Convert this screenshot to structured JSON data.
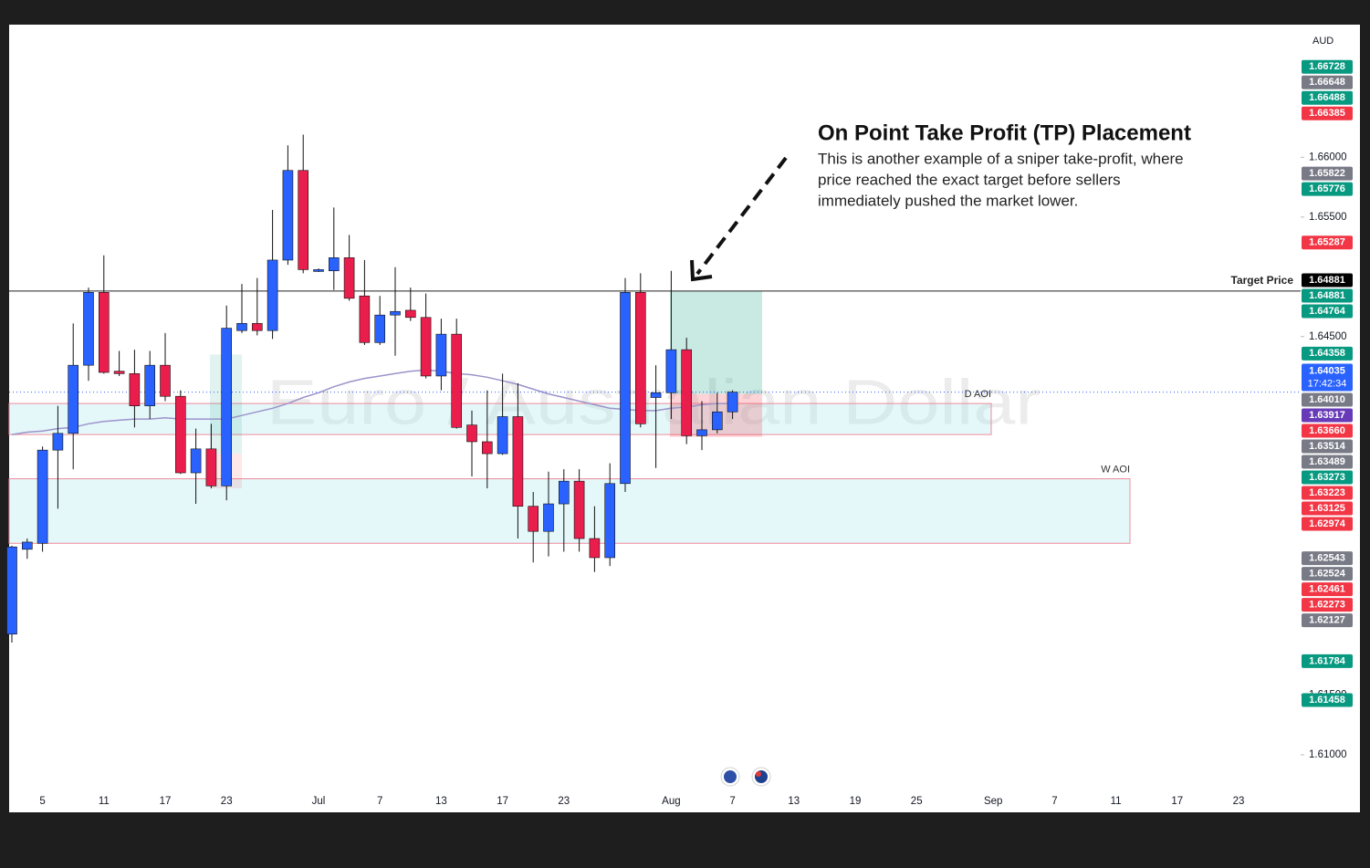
{
  "chart_data": {
    "type": "candlestick",
    "currency": "AUD",
    "watermark": "Euro / Australian Dollar",
    "annotation": {
      "title": "On Point Take Profit (TP) Placement",
      "lines": [
        "This is another example of a sniper take-profit, where",
        "price reached the exact target before sellers",
        "immediately pushed the market lower."
      ]
    },
    "categories": [
      null,
      null,
      "5",
      null,
      null,
      null,
      "11",
      null,
      null,
      null,
      "17",
      null,
      null,
      null,
      "23",
      null,
      null,
      null,
      null,
      null,
      "Jul",
      null,
      null,
      null,
      "7",
      null,
      null,
      null,
      "13",
      null,
      null,
      null,
      "17",
      null,
      null,
      null,
      "23",
      null,
      null,
      null,
      null,
      null,
      null,
      "Aug",
      null,
      null,
      null,
      "7",
      null,
      null,
      null,
      "13",
      null,
      null,
      null,
      "19",
      null,
      null,
      null,
      "25",
      null,
      null,
      null,
      null,
      "Sep",
      null,
      null,
      null,
      "7",
      null,
      null,
      null,
      "11",
      null,
      null,
      null,
      "17",
      null,
      null,
      null,
      "23",
      null
    ],
    "open": [
      1.6201,
      1.6272,
      1.6277,
      1.6355,
      1.6369,
      1.6426,
      1.6487,
      1.6421,
      1.6419,
      1.6392,
      1.6426,
      1.64,
      1.6336,
      1.6356,
      1.6325,
      1.6455,
      1.6461,
      1.6455,
      1.6514,
      1.6589,
      1.6505,
      1.6505,
      1.6516,
      1.6484,
      1.6445,
      1.6468,
      1.6472,
      1.6466,
      1.6417,
      1.6452,
      1.6376,
      1.6362,
      1.6352,
      1.6383,
      1.6308,
      1.6287,
      1.631,
      1.6329,
      1.6281,
      1.6265,
      1.6327,
      1.6487,
      1.6399,
      1.6403,
      1.6439,
      1.6367,
      1.6372,
      1.6387,
      null,
      null,
      null,
      null,
      null,
      null,
      null,
      null,
      null,
      null,
      null,
      null,
      null,
      null,
      null,
      null,
      null,
      null,
      null,
      null,
      null,
      null,
      null,
      null,
      null,
      null,
      null,
      null,
      null,
      null,
      null,
      null,
      null,
      null
    ],
    "high": [
      1.6275,
      1.6281,
      1.6358,
      1.6392,
      1.6461,
      1.6491,
      1.6518,
      1.6438,
      1.6439,
      1.6438,
      1.6453,
      1.6405,
      1.6373,
      1.6377,
      1.6476,
      1.6494,
      1.6499,
      1.6556,
      1.661,
      1.6619,
      1.6507,
      1.6558,
      1.6535,
      1.6514,
      1.6484,
      1.6508,
      1.6491,
      1.6486,
      1.6465,
      1.6465,
      1.6388,
      1.6405,
      1.6419,
      1.6411,
      1.632,
      1.6337,
      1.6339,
      1.6339,
      1.6308,
      1.6344,
      1.6499,
      1.6503,
      1.6426,
      1.6505,
      1.6449,
      1.6396,
      1.6403,
      1.6405,
      null,
      null,
      null,
      null,
      null,
      null,
      null,
      null,
      null,
      null,
      null,
      null,
      null,
      null,
      null,
      null,
      null,
      null,
      null,
      null,
      null,
      null,
      null,
      null,
      null,
      null,
      null,
      null,
      null,
      null,
      null,
      null,
      null,
      null
    ],
    "low": [
      1.6194,
      1.6264,
      1.627,
      1.6306,
      1.6339,
      1.6413,
      1.6419,
      1.6417,
      1.6374,
      1.6381,
      1.6396,
      1.6335,
      1.631,
      1.6323,
      1.6313,
      1.6453,
      1.6451,
      1.6448,
      1.651,
      1.6503,
      1.6504,
      1.6489,
      1.648,
      1.6443,
      1.6443,
      1.6434,
      1.6463,
      1.6415,
      1.6405,
      1.6373,
      1.6333,
      1.6323,
      1.6351,
      1.6281,
      1.6261,
      1.6266,
      1.627,
      1.627,
      1.6253,
      1.6258,
      1.632,
      1.6374,
      1.634,
      1.6381,
      1.636,
      1.6355,
      1.6369,
      1.6381,
      null,
      null,
      null,
      null,
      null,
      null,
      null,
      null,
      null,
      null,
      null,
      null,
      null,
      null,
      null,
      null,
      null,
      null,
      null,
      null,
      null,
      null,
      null,
      null,
      null,
      null,
      null,
      null,
      null,
      null,
      null,
      null,
      null,
      null
    ],
    "close": [
      1.6274,
      1.6278,
      1.6355,
      1.6369,
      1.6426,
      1.6487,
      1.642,
      1.6419,
      1.6392,
      1.6426,
      1.64,
      1.6336,
      1.6356,
      1.6325,
      1.6457,
      1.6461,
      1.6455,
      1.6514,
      1.6589,
      1.6506,
      1.6506,
      1.6516,
      1.6482,
      1.6445,
      1.6468,
      1.6471,
      1.6466,
      1.6417,
      1.6452,
      1.6374,
      1.6362,
      1.6352,
      1.6383,
      1.6308,
      1.6287,
      1.631,
      1.6329,
      1.6281,
      1.6265,
      1.6327,
      1.6487,
      1.6377,
      1.6403,
      1.6439,
      1.6367,
      1.6372,
      1.6387,
      1.64035,
      null,
      null,
      null,
      null,
      null,
      null,
      null,
      null,
      null,
      null,
      null,
      null,
      null,
      null,
      null,
      null,
      null,
      null,
      null,
      null,
      null,
      null,
      null,
      null,
      null,
      null,
      null,
      null,
      null,
      null,
      null,
      null,
      null,
      null
    ],
    "up_color": "#2962ff",
    "down_color": "#e91e4c",
    "moving_average": {
      "color": "#9c93c9",
      "values": [
        1.6368,
        1.637,
        1.6371,
        1.6373,
        1.6374,
        1.6377,
        1.6379,
        1.638,
        1.6381,
        1.6381,
        1.6382,
        1.6381,
        1.6381,
        1.6381,
        1.6381,
        1.6384,
        1.6387,
        1.639,
        1.6394,
        1.6399,
        1.6403,
        1.6408,
        1.6412,
        1.6415,
        1.6417,
        1.6419,
        1.6421,
        1.6422,
        1.6421,
        1.6419,
        1.6418,
        1.6416,
        1.6413,
        1.641,
        1.6406,
        1.6402,
        1.6399,
        1.6396,
        1.6393,
        1.639,
        1.6389,
        1.6388,
        1.6388,
        1.639,
        1.6391,
        1.6393,
        1.6394,
        1.6394,
        null,
        null,
        null,
        null,
        null,
        null,
        null,
        null,
        null,
        null,
        null,
        null,
        null,
        null,
        null,
        null,
        null,
        null,
        null,
        null,
        null,
        null,
        null,
        null,
        null,
        null,
        null,
        null,
        null,
        null,
        null,
        null,
        null,
        null
      ]
    },
    "zones": [
      {
        "label": "D AOI",
        "top": 1.6394,
        "bottom": 1.6368
      },
      {
        "label": "W AOI",
        "top": 1.6331,
        "bottom": 1.6277
      }
    ],
    "positions": [
      {
        "target": 1.6435,
        "entry": 1.6352,
        "stop": 1.6323
      },
      {
        "target": 1.64881,
        "entry": 1.6402,
        "stop": 1.6366
      }
    ],
    "target_line": {
      "label": "Target Price",
      "value": 1.64881
    },
    "ylim": [
      1.6071,
      1.6711
    ],
    "yticks": [
      {
        "value": 1.66,
        "label": "1.66000"
      },
      {
        "value": 1.655,
        "label": "1.65500"
      },
      {
        "value": 1.645,
        "label": "1.64500"
      },
      {
        "value": 1.615,
        "label": "1.61500"
      },
      {
        "value": 1.61,
        "label": "1.61000"
      }
    ],
    "price_tags": [
      {
        "value": 1.66728,
        "color": "#089981"
      },
      {
        "value": 1.66648,
        "color": "#787b86"
      },
      {
        "value": 1.66488,
        "color": "#089981"
      },
      {
        "value": 1.66385,
        "color": "#f23645"
      },
      {
        "value": 1.65822,
        "color": "#787b86"
      },
      {
        "value": 1.65776,
        "color": "#089981"
      },
      {
        "value": 1.65287,
        "color": "#f23645"
      },
      {
        "value": 1.64881,
        "color": "#000000"
      },
      {
        "value": 1.64881,
        "color": "#089981"
      },
      {
        "value": 1.64764,
        "color": "#089981"
      },
      {
        "value": 1.64358,
        "color": "#089981"
      },
      {
        "value": 1.64035,
        "color": "#2962ff",
        "time": "17:42:34"
      },
      {
        "value": 1.6401,
        "label": "1.64010",
        "color": "#787b86"
      },
      {
        "value": 1.63917,
        "color": "#673ab7"
      },
      {
        "value": 1.6366,
        "label": "1.63660",
        "color": "#f23645"
      },
      {
        "value": 1.63514,
        "color": "#787b86"
      },
      {
        "value": 1.63489,
        "color": "#787b86"
      },
      {
        "value": 1.63273,
        "color": "#089981"
      },
      {
        "value": 1.63223,
        "color": "#f23645"
      },
      {
        "value": 1.63125,
        "color": "#f23645"
      },
      {
        "value": 1.62974,
        "color": "#f23645"
      },
      {
        "value": 1.62543,
        "color": "#787b86"
      },
      {
        "value": 1.62524,
        "color": "#787b86"
      },
      {
        "value": 1.62461,
        "color": "#f23645"
      },
      {
        "value": 1.62273,
        "color": "#f23645"
      },
      {
        "value": 1.62127,
        "color": "#787b86"
      },
      {
        "value": 1.61784,
        "color": "#089981"
      },
      {
        "value": 1.61458,
        "color": "#089981"
      }
    ]
  }
}
